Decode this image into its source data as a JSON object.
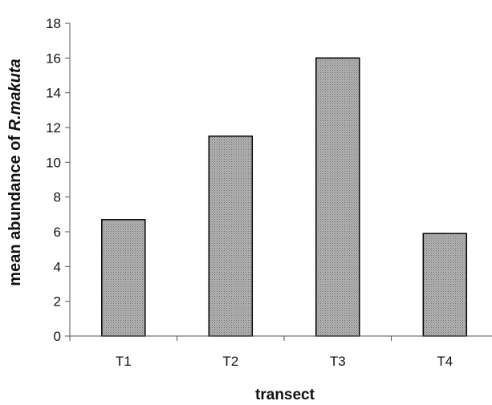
{
  "chart_data": {
    "type": "bar",
    "categories": [
      "T1",
      "T2",
      "T3",
      "T4"
    ],
    "values": [
      6.7,
      11.5,
      16.0,
      5.9
    ],
    "xlabel": "transect",
    "ylabel_prefix": "mean abundance of ",
    "ylabel_species": "R.makuta",
    "ylim": [
      0,
      18
    ],
    "yticks": [
      0,
      2,
      4,
      6,
      8,
      10,
      12,
      14,
      16,
      18
    ],
    "grid": false,
    "bar_fill": "#a9a9a9",
    "bar_stroke": "#000000"
  }
}
